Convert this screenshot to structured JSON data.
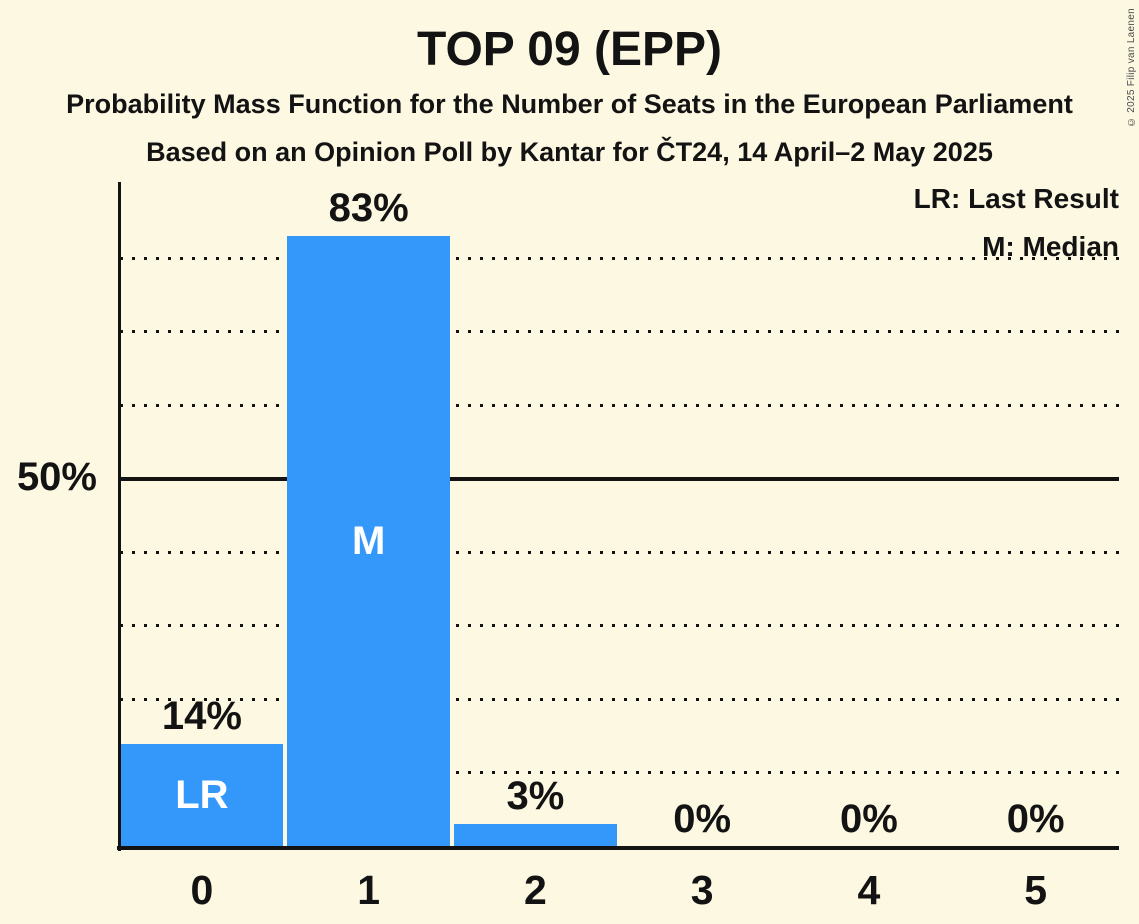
{
  "title": "TOP 09 (EPP)",
  "subtitle1": "Probability Mass Function for the Number of Seats in the European Parliament",
  "subtitle2": "Based on an Opinion Poll by Kantar for ČT24, 14 April–2 May 2025",
  "copyright": "© 2025 Filip van Laenen",
  "legend": {
    "last_result": "LR: Last Result",
    "median": "M: Median"
  },
  "colors": {
    "background": "#FCF8E2",
    "bar": "#3498FB",
    "text": "#131313",
    "bar_inner_label": "#FFFFFF"
  },
  "chart_data": {
    "type": "bar",
    "title": "TOP 09 (EPP)",
    "categories": [
      "0",
      "1",
      "2",
      "3",
      "4",
      "5"
    ],
    "values": [
      14,
      83,
      3,
      0,
      0,
      0
    ],
    "value_labels": [
      "14%",
      "83%",
      "3%",
      "0%",
      "0%",
      "0%"
    ],
    "bar_annotations": [
      "LR",
      "M",
      "",
      "",
      "",
      ""
    ],
    "y_axis_label": "50%",
    "ylim": [
      0,
      90
    ],
    "solid_gridline_pct": 50,
    "dotted_gridlines_pct": [
      10,
      20,
      30,
      40,
      60,
      70,
      80
    ],
    "grid": "dotted-horizontal",
    "legend_position": "top-right",
    "annotation_key": {
      "LR": "Last Result",
      "M": "Median"
    }
  }
}
